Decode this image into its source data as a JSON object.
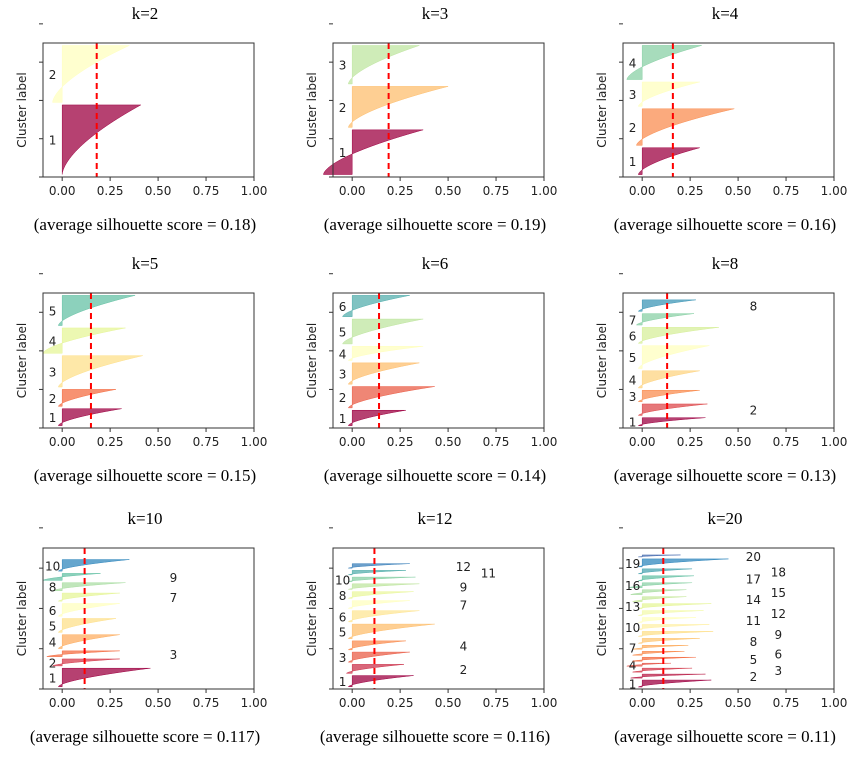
{
  "chart_data": [
    {
      "type": "area",
      "title": "k=2",
      "caption": "(average silhouette score = 0.18)",
      "avg": 0.18,
      "ylabel": "Cluster label",
      "xlim": [
        -0.1,
        1.0
      ],
      "xticks": [
        "0.00",
        "0.25",
        "0.50",
        "0.75",
        "1.00"
      ],
      "clusters": [
        {
          "label": "1",
          "size": 0.55,
          "max": 0.41,
          "min": 0.0
        },
        {
          "label": "2",
          "size": 0.45,
          "max": 0.35,
          "min": -0.05
        }
      ]
    },
    {
      "type": "area",
      "title": "k=3",
      "caption": "(average silhouette score = 0.19)",
      "avg": 0.19,
      "ylabel": "Cluster label",
      "xlim": [
        -0.1,
        1.0
      ],
      "xticks": [
        "0.00",
        "0.25",
        "0.50",
        "0.75",
        "1.00"
      ],
      "clusters": [
        {
          "label": "1",
          "size": 0.36,
          "max": 0.37,
          "min": -0.15
        },
        {
          "label": "2",
          "size": 0.33,
          "max": 0.5,
          "min": -0.02
        },
        {
          "label": "3",
          "size": 0.31,
          "max": 0.35,
          "min": -0.02
        }
      ]
    },
    {
      "type": "area",
      "title": "k=4",
      "caption": "(average silhouette score = 0.16)",
      "avg": 0.16,
      "ylabel": "Cluster label",
      "xlim": [
        -0.1,
        1.0
      ],
      "xticks": [
        "0.00",
        "0.25",
        "0.50",
        "0.75",
        "1.00"
      ],
      "clusters": [
        {
          "label": "1",
          "size": 0.22,
          "max": 0.3,
          "min": -0.02
        },
        {
          "label": "2",
          "size": 0.3,
          "max": 0.48,
          "min": -0.03
        },
        {
          "label": "3",
          "size": 0.2,
          "max": 0.3,
          "min": -0.02
        },
        {
          "label": "4",
          "size": 0.28,
          "max": 0.31,
          "min": -0.08
        }
      ]
    },
    {
      "type": "area",
      "title": "k=5",
      "caption": "(average silhouette score = 0.15)",
      "avg": 0.15,
      "ylabel": "Cluster label",
      "xlim": [
        -0.1,
        1.0
      ],
      "xticks": [
        "0.00",
        "0.25",
        "0.50",
        "0.75",
        "1.00"
      ],
      "clusters": [
        {
          "label": "1",
          "size": 0.14,
          "max": 0.31,
          "min": -0.02
        },
        {
          "label": "2",
          "size": 0.14,
          "max": 0.28,
          "min": -0.02
        },
        {
          "label": "3",
          "size": 0.26,
          "max": 0.42,
          "min": -0.02
        },
        {
          "label": "4",
          "size": 0.21,
          "max": 0.33,
          "min": -0.1
        },
        {
          "label": "5",
          "size": 0.25,
          "max": 0.38,
          "min": -0.02
        }
      ]
    },
    {
      "type": "area",
      "title": "k=6",
      "caption": "(average silhouette score = 0.14)",
      "avg": 0.14,
      "ylabel": "Cluster label",
      "xlim": [
        -0.1,
        1.0
      ],
      "xticks": [
        "0.00",
        "0.25",
        "0.50",
        "0.75",
        "1.00"
      ],
      "clusters": [
        {
          "label": "1",
          "size": 0.13,
          "max": 0.28,
          "min": -0.02
        },
        {
          "label": "2",
          "size": 0.18,
          "max": 0.43,
          "min": -0.02
        },
        {
          "label": "3",
          "size": 0.18,
          "max": 0.35,
          "min": -0.02
        },
        {
          "label": "4",
          "size": 0.12,
          "max": 0.37,
          "min": -0.02
        },
        {
          "label": "5",
          "size": 0.21,
          "max": 0.37,
          "min": -0.05
        },
        {
          "label": "6",
          "size": 0.18,
          "max": 0.3,
          "min": -0.05
        }
      ]
    },
    {
      "type": "area",
      "title": "k=8",
      "caption": "(average silhouette score = 0.13)",
      "avg": 0.13,
      "ylabel": "Cluster label",
      "xlim": [
        -0.1,
        1.0
      ],
      "xticks": [
        "0.00",
        "0.25",
        "0.50",
        "0.75",
        "1.00"
      ],
      "clusters": [
        {
          "label": "1",
          "size": 0.07,
          "max": 0.33,
          "min": -0.02
        },
        {
          "label": "2",
          "size": 0.1,
          "max": 0.34,
          "min": -0.02
        },
        {
          "label": "3",
          "size": 0.1,
          "max": 0.3,
          "min": -0.02
        },
        {
          "label": "4",
          "size": 0.15,
          "max": 0.3,
          "min": -0.02
        },
        {
          "label": "5",
          "size": 0.2,
          "max": 0.35,
          "min": -0.02
        },
        {
          "label": "6",
          "size": 0.14,
          "max": 0.4,
          "min": -0.02
        },
        {
          "label": "7",
          "size": 0.1,
          "max": 0.27,
          "min": -0.03
        },
        {
          "label": "8",
          "size": 0.1,
          "max": 0.28,
          "min": -0.02
        }
      ]
    },
    {
      "type": "area",
      "title": "k=10",
      "caption": "(average silhouette score = 0.117)",
      "avg": 0.117,
      "ylabel": "Cluster label",
      "xlim": [
        -0.1,
        1.0
      ],
      "xticks": [
        "0.00",
        "0.25",
        "0.50",
        "0.75",
        "1.00"
      ],
      "clusters": [
        {
          "label": "1",
          "size": 0.16,
          "max": 0.46,
          "min": -0.02
        },
        {
          "label": "2",
          "size": 0.06,
          "max": 0.3,
          "min": -0.05
        },
        {
          "label": "3",
          "size": 0.05,
          "max": 0.3,
          "min": -0.08
        },
        {
          "label": "4",
          "size": 0.12,
          "max": 0.3,
          "min": -0.02
        },
        {
          "label": "5",
          "size": 0.12,
          "max": 0.28,
          "min": -0.02
        },
        {
          "label": "6",
          "size": 0.11,
          "max": 0.3,
          "min": -0.02
        },
        {
          "label": "7",
          "size": 0.07,
          "max": 0.3,
          "min": -0.02
        },
        {
          "label": "8",
          "size": 0.07,
          "max": 0.33,
          "min": -0.05
        },
        {
          "label": "9",
          "size": 0.06,
          "max": 0.2,
          "min": -0.1
        },
        {
          "label": "10",
          "size": 0.1,
          "max": 0.35,
          "min": -0.02
        }
      ]
    },
    {
      "type": "area",
      "title": "k=12",
      "caption": "(average silhouette score = 0.116)",
      "avg": 0.116,
      "ylabel": "Cluster label",
      "xlim": [
        -0.1,
        1.0
      ],
      "xticks": [
        "0.00",
        "0.25",
        "0.50",
        "0.75",
        "1.00"
      ],
      "clusters": [
        {
          "label": "1",
          "size": 0.1,
          "max": 0.32,
          "min": -0.02
        },
        {
          "label": "2",
          "size": 0.08,
          "max": 0.27,
          "min": -0.03
        },
        {
          "label": "3",
          "size": 0.09,
          "max": 0.3,
          "min": -0.02
        },
        {
          "label": "4",
          "size": 0.08,
          "max": 0.28,
          "min": -0.02
        },
        {
          "label": "5",
          "size": 0.13,
          "max": 0.43,
          "min": -0.02
        },
        {
          "label": "6",
          "size": 0.1,
          "max": 0.35,
          "min": -0.02
        },
        {
          "label": "7",
          "size": 0.07,
          "max": 0.3,
          "min": -0.02
        },
        {
          "label": "8",
          "size": 0.06,
          "max": 0.32,
          "min": -0.02
        },
        {
          "label": "9",
          "size": 0.05,
          "max": 0.35,
          "min": -0.02
        },
        {
          "label": "10",
          "size": 0.04,
          "max": 0.33,
          "min": -0.02
        },
        {
          "label": "11",
          "size": 0.04,
          "max": 0.28,
          "min": -0.02
        },
        {
          "label": "12",
          "size": 0.04,
          "max": 0.3,
          "min": -0.02
        }
      ]
    },
    {
      "type": "area",
      "title": "k=20",
      "caption": "(average silhouette score = 0.11)",
      "avg": 0.11,
      "ylabel": "Cluster label",
      "xlim": [
        -0.1,
        1.0
      ],
      "xticks": [
        "0.00",
        "0.25",
        "0.50",
        "0.75",
        "1.00"
      ],
      "clusters": [
        {
          "label": "1",
          "size": 0.07,
          "max": 0.36,
          "min": -0.02
        },
        {
          "label": "2",
          "size": 0.04,
          "max": 0.33,
          "min": -0.06
        },
        {
          "label": "3",
          "size": 0.04,
          "max": 0.26,
          "min": -0.05
        },
        {
          "label": "4",
          "size": 0.03,
          "max": 0.15,
          "min": -0.08
        },
        {
          "label": "5",
          "size": 0.04,
          "max": 0.28,
          "min": -0.05
        },
        {
          "label": "6",
          "size": 0.04,
          "max": 0.22,
          "min": -0.05
        },
        {
          "label": "7",
          "size": 0.04,
          "max": 0.24,
          "min": -0.05
        },
        {
          "label": "8",
          "size": 0.05,
          "max": 0.3,
          "min": -0.02
        },
        {
          "label": "9",
          "size": 0.05,
          "max": 0.37,
          "min": -0.02
        },
        {
          "label": "10",
          "size": 0.05,
          "max": 0.35,
          "min": -0.02
        },
        {
          "label": "11",
          "size": 0.05,
          "max": 0.28,
          "min": -0.02
        },
        {
          "label": "12",
          "size": 0.05,
          "max": 0.32,
          "min": -0.02
        },
        {
          "label": "13",
          "size": 0.05,
          "max": 0.36,
          "min": -0.02
        },
        {
          "label": "14",
          "size": 0.05,
          "max": 0.23,
          "min": -0.05
        },
        {
          "label": "15",
          "size": 0.05,
          "max": 0.23,
          "min": -0.06
        },
        {
          "label": "16",
          "size": 0.05,
          "max": 0.26,
          "min": -0.07
        },
        {
          "label": "17",
          "size": 0.05,
          "max": 0.27,
          "min": -0.02
        },
        {
          "label": "18",
          "size": 0.05,
          "max": 0.26,
          "min": -0.02
        },
        {
          "label": "19",
          "size": 0.08,
          "max": 0.45,
          "min": -0.02
        },
        {
          "label": "20",
          "size": 0.02,
          "max": 0.2,
          "min": -0.02
        }
      ]
    }
  ],
  "colors": {
    "avg_line": "#ff0000",
    "axis": "#333333"
  }
}
